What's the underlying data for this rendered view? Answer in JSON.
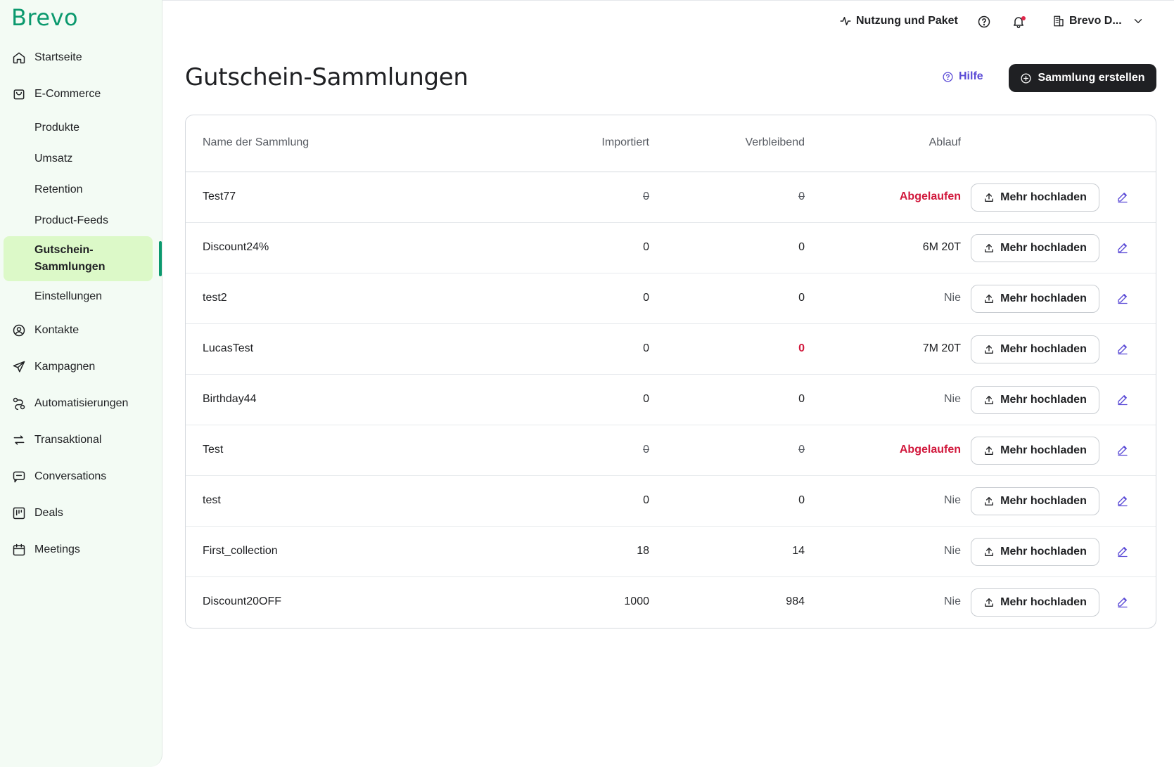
{
  "brand": {
    "logo_text": "Brevo",
    "accent": "#0b996e",
    "active_bg": "#dcf9c8"
  },
  "sidebar": {
    "items": [
      {
        "label": "Startseite",
        "icon": "home-icon"
      },
      {
        "label": "E-Commerce",
        "icon": "shopping-bag-icon"
      }
    ],
    "ecommerce_subitems": [
      {
        "label": "Produkte"
      },
      {
        "label": "Umsatz"
      },
      {
        "label": "Retention"
      },
      {
        "label": "Product-Feeds"
      },
      {
        "label": "Gutschein-Sammlungen",
        "line1": "Gutschein-",
        "line2": "Sammlungen",
        "active": true
      },
      {
        "label": "Einstellungen"
      }
    ],
    "more_items": [
      {
        "label": "Kontakte",
        "icon": "contact-icon"
      },
      {
        "label": "Kampagnen",
        "icon": "send-icon"
      },
      {
        "label": "Automatisierungen",
        "icon": "automation-icon"
      },
      {
        "label": "Transaktional",
        "icon": "transfer-icon"
      },
      {
        "label": "Conversations",
        "icon": "chat-icon"
      },
      {
        "label": "Deals",
        "icon": "kanban-icon"
      },
      {
        "label": "Meetings",
        "icon": "calendar-icon"
      }
    ]
  },
  "topbar": {
    "usage_label": "Nutzung und Paket",
    "account_label": "Brevo D..."
  },
  "header": {
    "title": "Gutschein-Sammlungen",
    "help_label": "Hilfe",
    "create_label": "Sammlung erstellen"
  },
  "table": {
    "columns": {
      "name": "Name der Sammlung",
      "imported": "Importiert",
      "remaining": "Verbleibend",
      "expiry": "Ablauf"
    },
    "upload_label": "Mehr hochladen",
    "rows": [
      {
        "name": "Test77",
        "imported": "0",
        "remaining": "0",
        "expiry": "Abgelaufen",
        "status": "expired"
      },
      {
        "name": "Discount24%",
        "imported": "0",
        "remaining": "0",
        "expiry": "6M 20T",
        "status": "active"
      },
      {
        "name": "test2",
        "imported": "0",
        "remaining": "0",
        "expiry": "Nie",
        "status": "never"
      },
      {
        "name": "LucasTest",
        "imported": "0",
        "remaining": "0",
        "expiry": "7M 20T",
        "status": "empty"
      },
      {
        "name": "Birthday44",
        "imported": "0",
        "remaining": "0",
        "expiry": "Nie",
        "status": "never"
      },
      {
        "name": "Test",
        "imported": "0",
        "remaining": "0",
        "expiry": "Abgelaufen",
        "status": "expired"
      },
      {
        "name": "test",
        "imported": "0",
        "remaining": "0",
        "expiry": "Nie",
        "status": "never"
      },
      {
        "name": "First_collection",
        "imported": "18",
        "remaining": "14",
        "expiry": "Nie",
        "status": "never"
      },
      {
        "name": "Discount20OFF",
        "imported": "1000",
        "remaining": "984",
        "expiry": "Nie",
        "status": "never"
      }
    ]
  }
}
